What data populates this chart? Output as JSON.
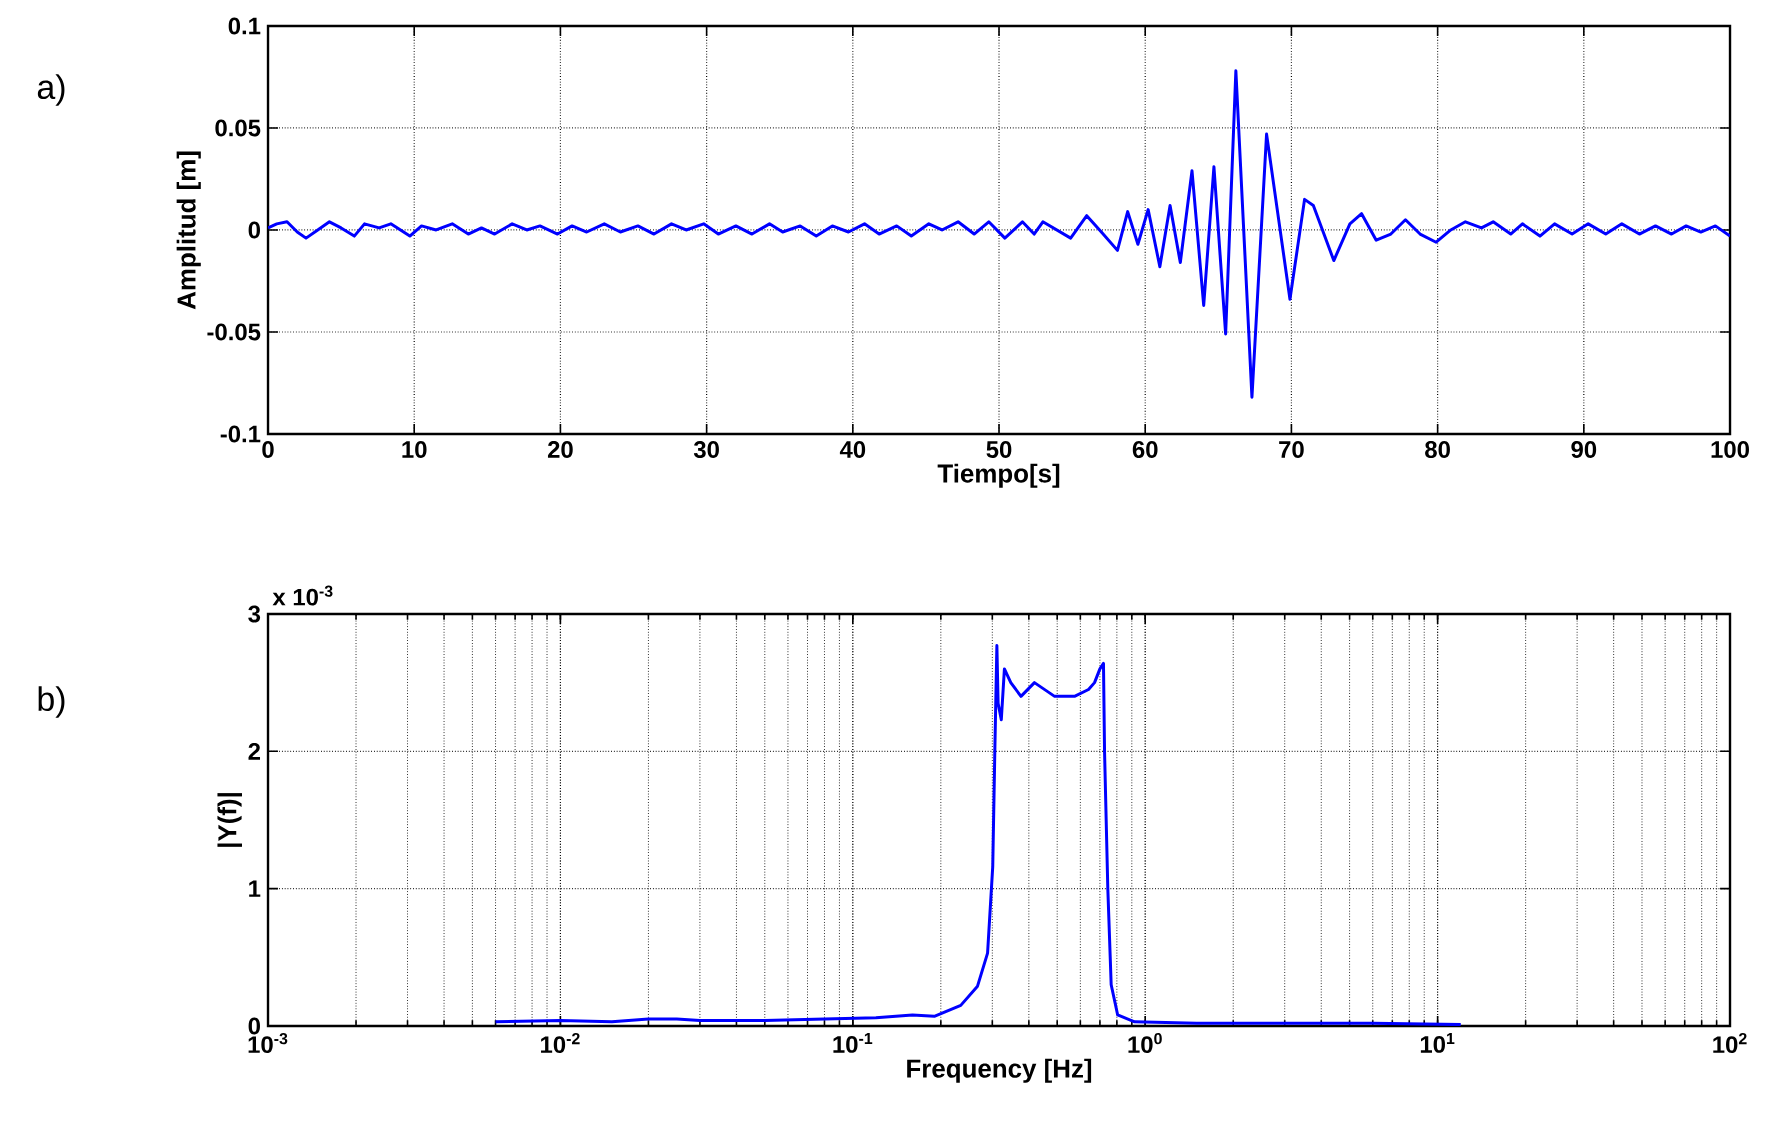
{
  "chart_data": [
    {
      "type": "line",
      "xlabel": "Tiempo[s]",
      "ylabel": "Amplitud [m]",
      "color": "#0000ff",
      "grid": true,
      "annotations": [
        "a)"
      ],
      "xlim": [
        0,
        100
      ],
      "ylim": [
        -0.1,
        0.1
      ],
      "xticks": [
        0,
        10,
        20,
        30,
        40,
        50,
        60,
        70,
        80,
        90,
        100
      ],
      "yticks": [
        -0.1,
        -0.05,
        0,
        0.05,
        0.1
      ],
      "x": [
        0,
        0.6,
        1.3,
        2.0,
        2.6,
        3.4,
        4.2,
        5.0,
        5.9,
        6.6,
        7.6,
        8.4,
        9.7,
        10.5,
        11.5,
        12.6,
        13.7,
        14.6,
        15.5,
        16.7,
        17.7,
        18.6,
        19.8,
        20.8,
        21.8,
        23.0,
        24.1,
        25.3,
        26.4,
        27.6,
        28.6,
        29.8,
        30.8,
        32.0,
        33.1,
        34.3,
        35.2,
        36.4,
        37.5,
        38.6,
        39.7,
        40.8,
        41.8,
        43.0,
        44.0,
        45.2,
        46.1,
        47.2,
        48.3,
        49.3,
        50.4,
        51.6,
        52.4,
        53.0,
        54.9,
        56.0,
        57.0,
        58.1,
        58.8,
        59.5,
        60.2,
        61.0,
        61.7,
        62.4,
        63.2,
        64.0,
        64.7,
        65.5,
        66.2,
        67.3,
        68.3,
        69.9,
        70.9,
        71.5,
        72.9,
        74.0,
        74.8,
        75.8,
        76.8,
        77.8,
        78.8,
        79.9,
        80.9,
        81.9,
        83.0,
        83.8,
        85.0,
        85.8,
        87.0,
        88.0,
        89.2,
        90.3,
        91.5,
        92.6,
        93.8,
        94.9,
        96.0,
        97.0,
        98.0,
        99.0,
        100
      ],
      "values": [
        0.001,
        0.003,
        0.004,
        -0.001,
        -0.004,
        0.0,
        0.004,
        0.001,
        -0.003,
        0.003,
        0.001,
        0.003,
        -0.003,
        0.002,
        0.0,
        0.003,
        -0.002,
        0.001,
        -0.002,
        0.003,
        0.0,
        0.002,
        -0.002,
        0.002,
        -0.001,
        0.003,
        -0.001,
        0.002,
        -0.002,
        0.003,
        0.0,
        0.003,
        -0.002,
        0.002,
        -0.002,
        0.003,
        -0.001,
        0.002,
        -0.003,
        0.002,
        -0.001,
        0.003,
        -0.002,
        0.002,
        -0.003,
        0.003,
        0.0,
        0.004,
        -0.002,
        0.004,
        -0.004,
        0.004,
        -0.002,
        0.004,
        -0.004,
        0.007,
        -0.001,
        -0.01,
        0.009,
        -0.007,
        0.01,
        -0.018,
        0.012,
        -0.016,
        0.029,
        -0.037,
        0.031,
        -0.051,
        0.078,
        -0.082,
        0.047,
        -0.034,
        0.015,
        0.012,
        -0.015,
        0.003,
        0.008,
        -0.005,
        -0.002,
        0.005,
        -0.002,
        -0.006,
        0.0,
        0.004,
        0.001,
        0.004,
        -0.002,
        0.003,
        -0.003,
        0.003,
        -0.002,
        0.003,
        -0.002,
        0.003,
        -0.002,
        0.002,
        -0.002,
        0.002,
        -0.001,
        0.002,
        -0.003
      ]
    },
    {
      "type": "line",
      "xlabel": "Frequency [Hz]",
      "ylabel": "|Y(f)|",
      "color": "#0000ff",
      "grid": true,
      "log": "x",
      "annotations": [
        "b)",
        "x 10$^{-3}$"
      ],
      "xlim": [
        0.001,
        100
      ],
      "ylim": [
        0,
        3
      ],
      "xticks": [
        {
          "value": 0.001,
          "label": "10$^{-3}$"
        },
        {
          "value": 0.01,
          "label": "10$^{-2}$"
        },
        {
          "value": 0.1,
          "label": "10$^{-1}$"
        },
        {
          "value": 1,
          "label": "10$^{0}$"
        },
        {
          "value": 10,
          "label": "10$^{1}$"
        },
        {
          "value": 100,
          "label": "10$^{2}$"
        }
      ],
      "yticks": [
        0,
        1,
        2,
        3
      ],
      "x": [
        0.006,
        0.01,
        0.015,
        0.02,
        0.025,
        0.03,
        0.05,
        0.08,
        0.12,
        0.16,
        0.19,
        0.234,
        0.267,
        0.289,
        0.301,
        0.306,
        0.311,
        0.314,
        0.322,
        0.33,
        0.347,
        0.376,
        0.418,
        0.49,
        0.573,
        0.64,
        0.671,
        0.7,
        0.72,
        0.726,
        0.745,
        0.765,
        0.805,
        0.92,
        1.5,
        3,
        6,
        12
      ],
      "values": [
        0.03,
        0.04,
        0.03,
        0.05,
        0.05,
        0.04,
        0.04,
        0.05,
        0.06,
        0.08,
        0.07,
        0.15,
        0.29,
        0.53,
        1.16,
        2.0,
        2.77,
        2.35,
        2.23,
        2.6,
        2.5,
        2.4,
        2.5,
        2.4,
        2.4,
        2.45,
        2.5,
        2.6,
        2.64,
        2.0,
        1.0,
        0.3,
        0.08,
        0.03,
        0.02,
        0.02,
        0.02,
        0.01
      ]
    }
  ]
}
